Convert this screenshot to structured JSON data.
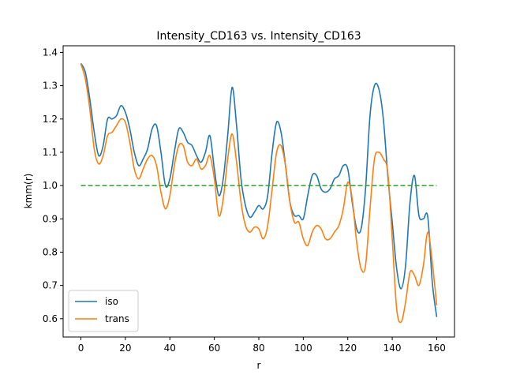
{
  "chart_data": {
    "type": "line",
    "title": "Intensity_CD163 vs. Intensity_CD163",
    "xlabel": "r",
    "ylabel": "kmm(r)",
    "xlim": [
      -8,
      168
    ],
    "ylim": [
      0.545,
      1.42
    ],
    "x_ticks": [
      0,
      20,
      40,
      60,
      80,
      100,
      120,
      140,
      160
    ],
    "y_ticks": [
      0.6,
      0.7,
      0.8,
      0.9,
      1.0,
      1.1,
      1.2,
      1.3,
      1.4
    ],
    "x_tick_labels": [
      "0",
      "20",
      "40",
      "60",
      "80",
      "100",
      "120",
      "140",
      "160"
    ],
    "y_tick_labels": [
      "0.6",
      "0.7",
      "0.8",
      "0.9",
      "1.0",
      "1.1",
      "1.2",
      "1.3",
      "1.4"
    ],
    "grid": false,
    "legend_position": "lower-left",
    "series": [
      {
        "name": "iso",
        "color": "#1f77b4",
        "x": [
          0,
          2,
          4,
          6,
          8,
          10,
          12,
          14,
          16,
          18,
          20,
          22,
          24,
          26,
          28,
          30,
          32,
          34,
          36,
          38,
          40,
          42,
          44,
          46,
          48,
          50,
          52,
          54,
          56,
          58,
          60,
          62,
          64,
          66,
          68,
          70,
          72,
          74,
          76,
          78,
          80,
          82,
          84,
          86,
          88,
          90,
          92,
          94,
          96,
          98,
          100,
          102,
          104,
          106,
          108,
          110,
          112,
          114,
          116,
          118,
          120,
          122,
          124,
          126,
          128,
          130,
          132,
          134,
          136,
          138,
          140,
          142,
          144,
          146,
          148,
          150,
          152,
          154,
          156,
          158,
          160
        ],
        "values": [
          1.367,
          1.34,
          1.26,
          1.16,
          1.09,
          1.12,
          1.2,
          1.2,
          1.21,
          1.24,
          1.22,
          1.17,
          1.1,
          1.06,
          1.08,
          1.11,
          1.17,
          1.18,
          1.1,
          1.0,
          1.02,
          1.1,
          1.17,
          1.16,
          1.13,
          1.12,
          1.09,
          1.07,
          1.1,
          1.15,
          1.05,
          0.97,
          1.02,
          1.15,
          1.295,
          1.18,
          1.02,
          0.94,
          0.905,
          0.92,
          0.94,
          0.93,
          0.97,
          1.1,
          1.19,
          1.16,
          1.06,
          0.95,
          0.91,
          0.91,
          0.9,
          0.97,
          1.03,
          1.03,
          0.99,
          0.98,
          0.99,
          1.02,
          1.03,
          1.06,
          1.05,
          0.95,
          0.87,
          0.87,
          0.99,
          1.21,
          1.3,
          1.29,
          1.2,
          1.03,
          0.89,
          0.75,
          0.69,
          0.76,
          0.95,
          1.03,
          0.91,
          0.9,
          0.905,
          0.71,
          0.605
        ]
      },
      {
        "name": "trans",
        "color": "#ff7f0e",
        "x": [
          0,
          2,
          4,
          6,
          8,
          10,
          12,
          14,
          16,
          18,
          20,
          22,
          24,
          26,
          28,
          30,
          32,
          34,
          36,
          38,
          40,
          42,
          44,
          46,
          48,
          50,
          52,
          54,
          56,
          58,
          60,
          62,
          64,
          66,
          68,
          70,
          72,
          74,
          76,
          78,
          80,
          82,
          84,
          86,
          88,
          90,
          92,
          94,
          96,
          98,
          100,
          102,
          104,
          106,
          108,
          110,
          112,
          114,
          116,
          118,
          120,
          122,
          124,
          126,
          128,
          130,
          132,
          134,
          136,
          138,
          140,
          142,
          144,
          146,
          148,
          150,
          152,
          154,
          156,
          158,
          160
        ],
        "values": [
          1.365,
          1.32,
          1.23,
          1.11,
          1.065,
          1.09,
          1.15,
          1.16,
          1.18,
          1.2,
          1.19,
          1.13,
          1.05,
          1.02,
          1.05,
          1.08,
          1.09,
          1.06,
          0.98,
          0.93,
          0.97,
          1.06,
          1.12,
          1.12,
          1.07,
          1.06,
          1.08,
          1.05,
          1.06,
          1.09,
          1.02,
          0.91,
          0.96,
          1.08,
          1.155,
          1.07,
          0.95,
          0.88,
          0.86,
          0.875,
          0.87,
          0.84,
          0.88,
          0.99,
          1.1,
          1.12,
          1.06,
          0.95,
          0.89,
          0.89,
          0.84,
          0.82,
          0.86,
          0.88,
          0.87,
          0.84,
          0.84,
          0.86,
          0.88,
          0.93,
          1.01,
          0.96,
          0.83,
          0.75,
          0.76,
          0.93,
          1.08,
          1.1,
          1.08,
          1.04,
          0.84,
          0.63,
          0.59,
          0.65,
          0.74,
          0.73,
          0.7,
          0.76,
          0.86,
          0.77,
          0.64
        ]
      },
      {
        "name": "",
        "color": "#2ca02c",
        "dashed": true,
        "x": [
          0,
          160
        ],
        "values": [
          1.0,
          1.0
        ]
      }
    ]
  }
}
